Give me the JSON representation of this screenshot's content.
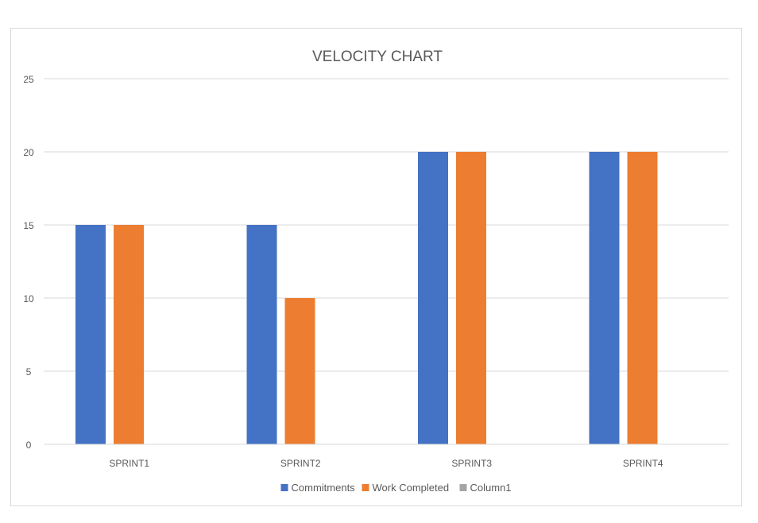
{
  "chart_data": {
    "type": "bar",
    "title": "VELOCITY CHART",
    "xlabel": "",
    "ylabel": "",
    "categories": [
      "SPRINT1",
      "SPRINT2",
      "SPRINT3",
      "SPRINT4"
    ],
    "series": [
      {
        "name": "Commitments",
        "values": [
          15,
          15,
          20,
          20
        ],
        "color": "#4472c4"
      },
      {
        "name": "Work Completed",
        "values": [
          15,
          10,
          20,
          20
        ],
        "color": "#ed7d31"
      },
      {
        "name": "Column1",
        "values": [
          0,
          0,
          0,
          0
        ],
        "color": "#a5a5a5"
      }
    ],
    "ylim": [
      0,
      25
    ],
    "yticks": [
      0,
      5,
      10,
      15,
      20,
      25
    ],
    "grid": true,
    "legend_position": "bottom"
  }
}
